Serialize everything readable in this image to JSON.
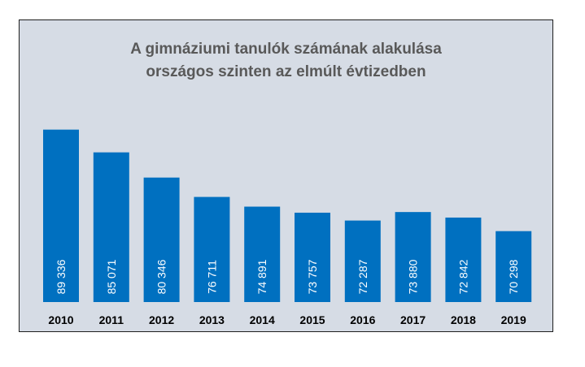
{
  "chart_data": {
    "type": "bar",
    "title": [
      "A gimnáziumi tanulók számának alakulása",
      "országos szinten az elmúlt évtizedben"
    ],
    "xlabel": "",
    "ylabel": "",
    "categories": [
      "2010",
      "2011",
      "2012",
      "2013",
      "2014",
      "2015",
      "2016",
      "2017",
      "2018",
      "2019"
    ],
    "values": [
      89336,
      85071,
      80346,
      76711,
      74891,
      73757,
      72287,
      73880,
      72842,
      70298
    ],
    "value_labels": [
      "89 336",
      "85 071",
      "80 346",
      "76 711",
      "74 891",
      "73 757",
      "72 287",
      "73 880",
      "72 842",
      "70 298"
    ],
    "ylim": [
      57000,
      90500
    ],
    "grid": false,
    "legend": "none",
    "colors": {
      "bar": "#0070c0",
      "plot_background": "#d6dce5",
      "title": "#595959",
      "value_label": "#ffffff",
      "tick_label": "#000000"
    }
  }
}
